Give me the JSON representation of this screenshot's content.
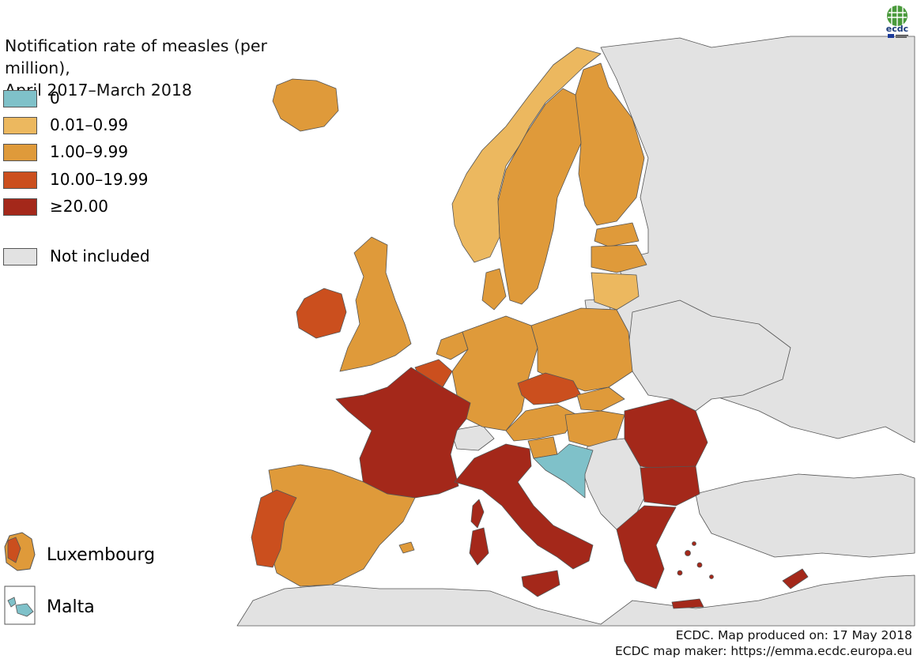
{
  "title_line1": "Notification rate of measles (per million),",
  "title_line2": "April 2017–March 2018",
  "legend": [
    {
      "label": "0",
      "color": "#7fc1c9"
    },
    {
      "label": "0.01–0.99",
      "color": "#ecb85f"
    },
    {
      "label": "1.00–9.99",
      "color": "#df9a3a"
    },
    {
      "label": "10.00–19.99",
      "color": "#cb4f1e"
    },
    {
      "label": "≥20.00",
      "color": "#a4281a"
    },
    {
      "label": "Not included",
      "color": "#e2e2e2"
    }
  ],
  "insets": [
    {
      "label": "Luxembourg"
    },
    {
      "label": "Malta"
    }
  ],
  "colors": {
    "not_included": "#e2e2e2",
    "sea": "#ffffff",
    "border": "#555555"
  },
  "credits_line1": "ECDC. Map produced on: 17 May 2018",
  "credits_line2": "ECDC map maker: https://emma.ecdc.europa.eu",
  "logo_icon": "ecdc-logo-icon",
  "logo_text": "ecdc"
}
